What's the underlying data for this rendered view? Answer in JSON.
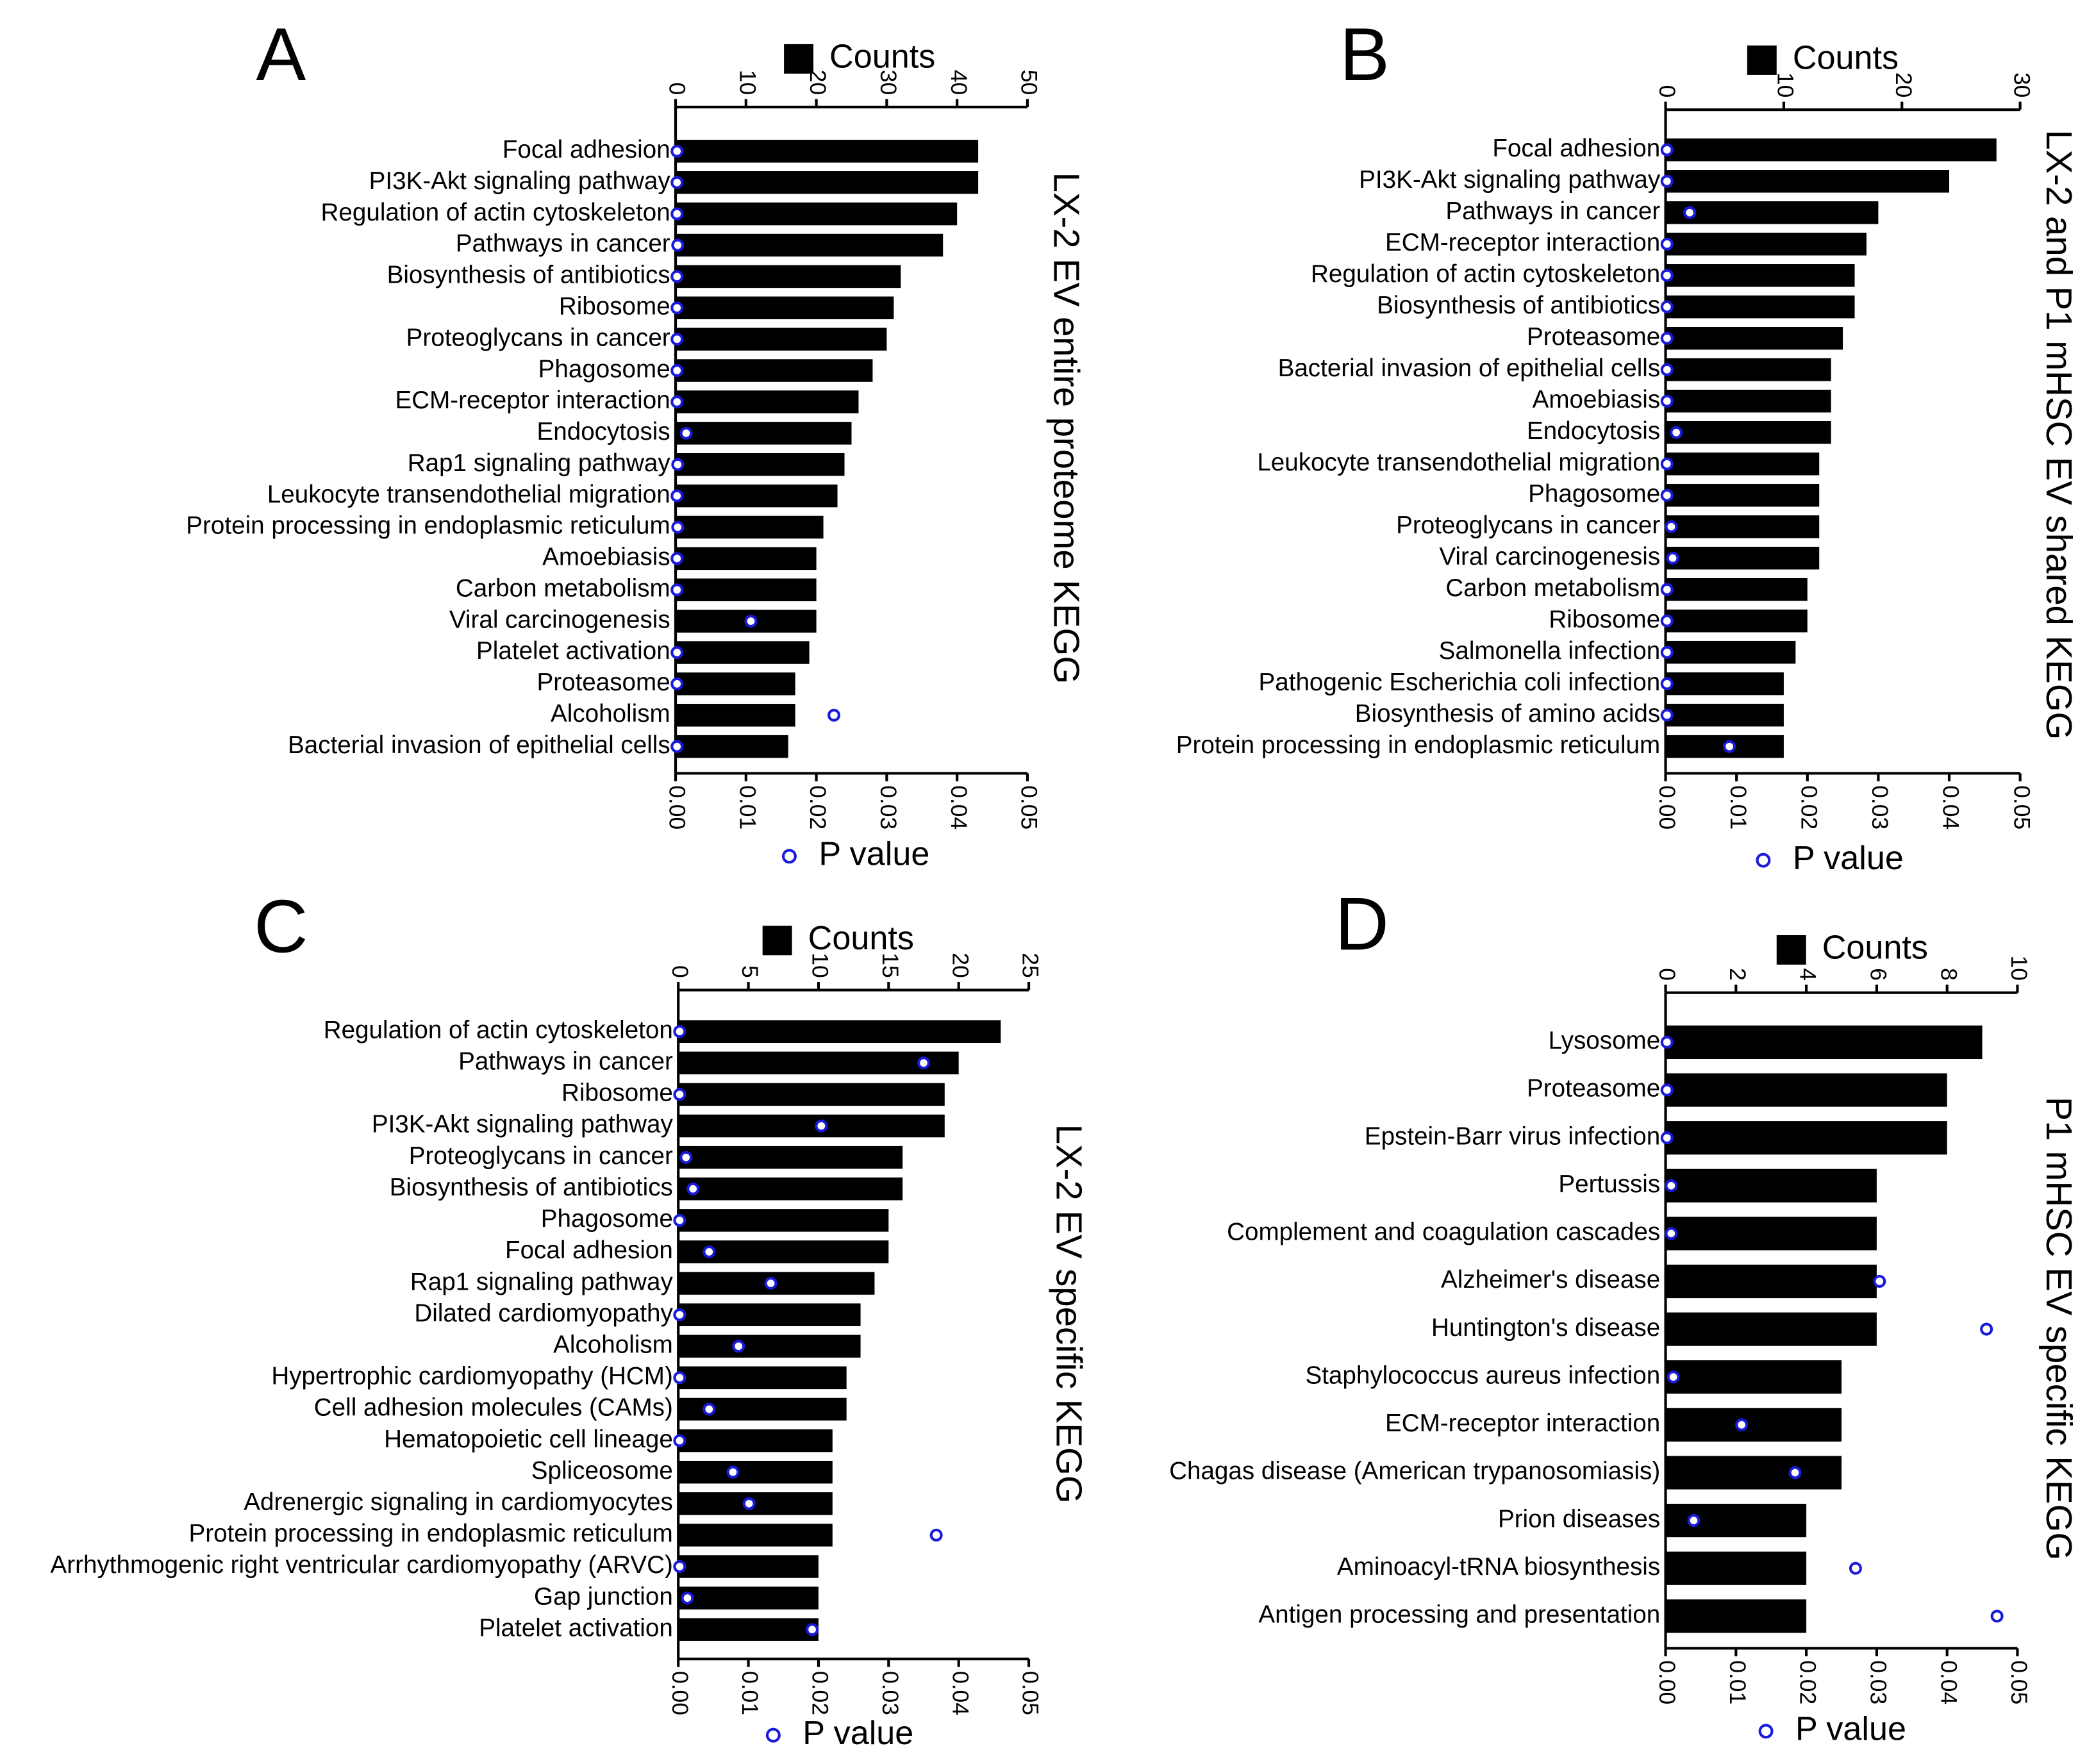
{
  "chart_data": [
    {
      "type": "bar",
      "panel": "A",
      "title": "LX-2 EV entire proteome KEGG",
      "categories": [
        "Focal adhesion",
        "PI3K-Akt signaling pathway",
        "Regulation of actin cytoskeleton",
        "Pathways in cancer",
        "Biosynthesis of antibiotics",
        "Ribosome",
        "Proteoglycans in cancer",
        "Phagosome",
        "ECM-receptor interaction",
        "Endocytosis",
        "Rap1 signaling pathway",
        "Leukocyte transendothelial migration",
        "Protein processing in endoplasmic reticulum",
        "Amoebiasis",
        "Carbon metabolism",
        "Viral carcinogenesis",
        "Platelet activation",
        "Proteasome",
        "Alcoholism",
        "Bacterial invasion of epithelial cells"
      ],
      "series": [
        {
          "name": "Counts",
          "color": "#000000",
          "values": [
            43,
            43,
            40,
            38,
            32,
            31,
            30,
            28,
            26,
            25,
            24,
            23,
            21,
            20,
            20,
            20,
            19,
            17,
            17,
            16
          ]
        },
        {
          "name": "P value",
          "color": "#1a1adb",
          "axis": "x2",
          "values": [
            0.0002,
            0.0002,
            0.0002,
            0.0003,
            0.0002,
            0.0002,
            0.0002,
            0.0002,
            0.0002,
            0.0015,
            0.0003,
            0.0002,
            0.0003,
            0.0002,
            0.0002,
            0.0107,
            0.0002,
            0.0002,
            0.0225,
            0.0002
          ]
        }
      ],
      "xlim": [
        0,
        50
      ],
      "xticks": [
        0,
        10,
        20,
        30,
        40,
        50
      ],
      "x2lim": [
        0,
        0.05
      ],
      "x2ticks": [
        {
          "value": 0,
          "label": "0.00"
        },
        0.01,
        0.02,
        0.03,
        0.04,
        0.05
      ]
    },
    {
      "type": "bar",
      "panel": "B",
      "title": "LX-2 and P1 mHSC EV shared KEGG",
      "categories": [
        "Focal adhesion",
        "PI3K-Akt signaling pathway",
        "Pathways in cancer",
        "ECM-receptor interaction",
        "Regulation of actin cytoskeleton",
        "Biosynthesis of antibiotics",
        "Proteasome",
        "Bacterial invasion of epithelial cells",
        "Amoebiasis",
        "Endocytosis",
        "Leukocyte transendothelial migration",
        "Phagosome",
        "Proteoglycans in cancer",
        "Viral carcinogenesis",
        "Carbon metabolism",
        "Ribosome",
        "Salmonella infection",
        "Pathogenic Escherichia coli infection",
        "Biosynthesis of amino acids",
        "Protein processing in endoplasmic reticulum"
      ],
      "series": [
        {
          "name": "Counts",
          "color": "#000000",
          "values": [
            28,
            24,
            18,
            17,
            16,
            16,
            15,
            14,
            14,
            14,
            13,
            13,
            13,
            13,
            12,
            12,
            11,
            10,
            10,
            10
          ]
        },
        {
          "name": "P value",
          "color": "#1a1adb",
          "axis": "x2",
          "values": [
            0.0002,
            0.0002,
            0.0034,
            0.0002,
            0.0002,
            0.0002,
            0.0002,
            0.0002,
            0.0002,
            0.0015,
            0.0002,
            0.0002,
            0.0008,
            0.001,
            0.0002,
            0.0002,
            0.0002,
            0.0002,
            0.0002,
            0.009
          ]
        }
      ],
      "xlim": [
        0,
        30
      ],
      "xticks": [
        0,
        10,
        20,
        30
      ],
      "x2lim": [
        0,
        0.05
      ],
      "x2ticks": [
        {
          "value": 0,
          "label": "0.00"
        },
        0.01,
        0.02,
        0.03,
        0.04,
        0.05
      ]
    },
    {
      "type": "bar",
      "panel": "C",
      "title": "LX-2 EV specific KEGG",
      "categories": [
        "Regulation of actin cytoskeleton",
        "Pathways in cancer",
        "Ribosome",
        "PI3K-Akt signaling pathway",
        "Proteoglycans in cancer",
        "Biosynthesis of antibiotics",
        "Phagosome",
        "Focal adhesion",
        "Rap1 signaling pathway",
        "Dilated cardiomyopathy",
        "Alcoholism",
        "Hypertrophic cardiomyopathy (HCM)",
        "Cell adhesion molecules (CAMs)",
        "Hematopoietic cell lineage",
        "Spliceosome",
        "Adrenergic signaling in cardiomyocytes",
        "Protein processing in endoplasmic reticulum",
        "Arrhythmogenic right ventricular cardiomyopathy (ARVC)",
        "Gap junction",
        "Platelet activation"
      ],
      "series": [
        {
          "name": "Counts",
          "color": "#000000",
          "values": [
            23,
            20,
            19,
            19,
            16,
            16,
            15,
            15,
            14,
            13,
            13,
            12,
            12,
            11,
            11,
            11,
            11,
            10,
            10,
            10
          ]
        },
        {
          "name": "P value",
          "color": "#1a1adb",
          "axis": "x2",
          "values": [
            0.0002,
            0.035,
            0.0002,
            0.0204,
            0.0011,
            0.0021,
            0.0002,
            0.0044,
            0.0132,
            0.0002,
            0.0086,
            0.0002,
            0.0044,
            0.0002,
            0.0078,
            0.0101,
            0.0368,
            0.0002,
            0.0013,
            0.0191
          ]
        }
      ],
      "xlim": [
        0,
        25
      ],
      "xticks": [
        0,
        5,
        10,
        15,
        20,
        25
      ],
      "x2lim": [
        0,
        0.05
      ],
      "x2ticks": [
        {
          "value": 0,
          "label": "0.00"
        },
        0.01,
        0.02,
        0.03,
        0.04,
        0.05
      ]
    },
    {
      "type": "bar",
      "panel": "D",
      "title": "P1 mHSC EV specific KEGG",
      "categories": [
        "Lysosome",
        "Proteasome",
        "Epstein-Barr virus infection",
        "Pertussis",
        "Complement and coagulation cascades",
        "Alzheimer's disease",
        "Huntington's disease",
        "Staphylococcus aureus infection",
        "ECM-receptor interaction",
        "Chagas disease (American trypanosomiasis)",
        "Prion diseases",
        "Aminoacyl-tRNA biosynthesis",
        "Antigen processing and presentation"
      ],
      "series": [
        {
          "name": "Counts",
          "color": "#000000",
          "values": [
            9,
            8,
            8,
            6,
            6,
            6,
            6,
            5,
            5,
            5,
            4,
            4,
            4
          ]
        },
        {
          "name": "P value",
          "color": "#1a1adb",
          "axis": "x2",
          "values": [
            0.0002,
            0.0002,
            0.0002,
            0.0008,
            0.0008,
            0.0304,
            0.0456,
            0.0011,
            0.0108,
            0.0184,
            0.004,
            0.027,
            0.0471
          ]
        }
      ],
      "xlim": [
        0,
        10
      ],
      "xticks": [
        0,
        2,
        4,
        6,
        8,
        10
      ],
      "x2lim": [
        0,
        0.05
      ],
      "x2ticks": [
        {
          "value": 0,
          "label": "0.00"
        },
        0.01,
        0.02,
        0.03,
        0.04,
        0.05
      ]
    }
  ]
}
